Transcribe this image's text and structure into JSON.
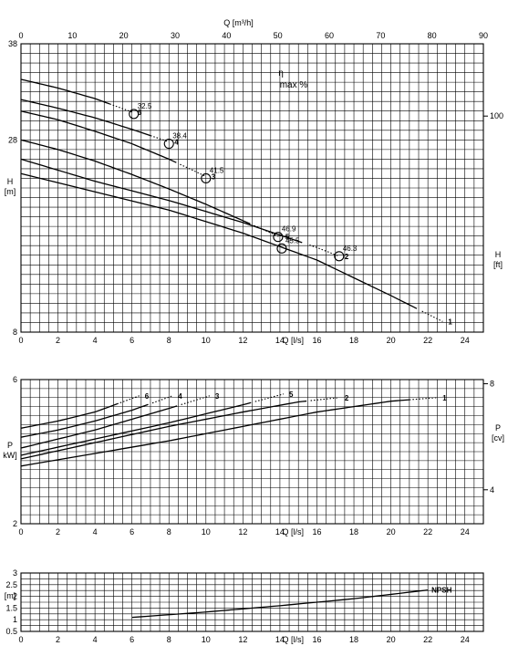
{
  "chart_data": [
    {
      "type": "line",
      "title": "",
      "xlabel": "Q [l/s]",
      "ylabel": "H\n[m]",
      "ylim": [
        8,
        38
      ],
      "xlim": [
        0,
        25
      ],
      "xticks": [
        0,
        2,
        4,
        6,
        8,
        10,
        12,
        14,
        16,
        18,
        20,
        22,
        24
      ],
      "yticks": [
        8,
        28,
        38
      ],
      "top_axis": {
        "label": "Q [m³/h]",
        "ticks": [
          0,
          10,
          20,
          30,
          40,
          50,
          60,
          70,
          80,
          90
        ]
      },
      "right_axis": {
        "label": "H\n[ft]",
        "ticks": [
          100
        ]
      },
      "annotation": {
        "line1": "η",
        "line2": "max %"
      },
      "series": [
        {
          "name": "1",
          "x": [
            0,
            4,
            8,
            12,
            16,
            20,
            22.8
          ],
          "y": [
            24.5,
            22.6,
            20.7,
            18.3,
            15.5,
            11.8,
            9.1
          ],
          "dotted_from": 21.5
        },
        {
          "name": "2",
          "x": [
            0,
            4,
            8,
            12,
            16,
            17.2
          ],
          "y": [
            26.0,
            23.7,
            21.7,
            19.4,
            16.8,
            15.9
          ],
          "dotted_from": 15.5
        },
        {
          "name": "3",
          "x": [
            0,
            2,
            4,
            6,
            8,
            10
          ],
          "y": [
            31.0,
            30.1,
            28.9,
            27.6,
            26.0,
            24.2
          ],
          "dotted_from": 8.5
        },
        {
          "name": "4",
          "x": [
            0,
            2,
            4,
            6,
            8
          ],
          "y": [
            32.2,
            31.3,
            30.3,
            29.1,
            27.8
          ],
          "dotted_from": 7.0
        },
        {
          "name": "5",
          "x": [
            0,
            2,
            4,
            6,
            8,
            10,
            12,
            14
          ],
          "y": [
            28.0,
            27.0,
            25.8,
            24.4,
            22.9,
            21.3,
            19.6,
            17.9
          ],
          "dotted_from": 12.5
        },
        {
          "name": "6",
          "x": [
            0,
            2,
            4,
            6
          ],
          "y": [
            34.3,
            33.4,
            32.3,
            30.9
          ],
          "dotted_from": 4.8
        }
      ],
      "efficiency_points": [
        {
          "series": "6",
          "x": 6.1,
          "y": 30.7,
          "label": "32.5"
        },
        {
          "series": "4",
          "x": 8.0,
          "y": 27.6,
          "label": "38.4"
        },
        {
          "series": "3",
          "x": 10.0,
          "y": 24.0,
          "label": "41.5"
        },
        {
          "series": "5",
          "x": 13.9,
          "y": 17.9,
          "label": "46.9"
        },
        {
          "series": "1",
          "x": 14.1,
          "y": 16.7,
          "label": "45.5"
        },
        {
          "series": "2",
          "x": 17.2,
          "y": 15.9,
          "label": "46.3"
        }
      ]
    },
    {
      "type": "line",
      "title": "",
      "xlabel": "Q [l/s]",
      "ylabel": "P\nkW]",
      "ylim": [
        2,
        6
      ],
      "xlim": [
        0,
        25
      ],
      "xticks": [
        0,
        2,
        4,
        6,
        8,
        10,
        12,
        14,
        16,
        18,
        20,
        22,
        24
      ],
      "yticks": [
        2,
        6
      ],
      "right_axis": {
        "label": "P\n[cv]",
        "ticks": [
          4,
          8
        ]
      },
      "series": [
        {
          "name": "1",
          "x": [
            0,
            4,
            8,
            12,
            16,
            20,
            22.5
          ],
          "y": [
            3.6,
            3.95,
            4.3,
            4.7,
            5.1,
            5.4,
            5.5
          ],
          "dotted_from": 21.0
        },
        {
          "name": "2",
          "x": [
            0,
            4,
            8,
            12,
            15,
            17.2
          ],
          "y": [
            3.8,
            4.25,
            4.7,
            5.1,
            5.38,
            5.5
          ],
          "dotted_from": 15.5
        },
        {
          "name": "3",
          "x": [
            0,
            2,
            4,
            6,
            8,
            10.2
          ],
          "y": [
            4.1,
            4.35,
            4.6,
            4.9,
            5.2,
            5.55
          ],
          "dotted_from": 8.5
        },
        {
          "name": "4",
          "x": [
            0,
            2,
            4,
            6,
            8.2
          ],
          "y": [
            4.4,
            4.6,
            4.85,
            5.15,
            5.55
          ],
          "dotted_from": 7.0
        },
        {
          "name": "5",
          "x": [
            0,
            4,
            8,
            12,
            14.2
          ],
          "y": [
            3.9,
            4.35,
            4.8,
            5.3,
            5.6
          ],
          "dotted_from": 12.5
        },
        {
          "name": "6",
          "x": [
            0,
            2,
            4,
            6.4
          ],
          "y": [
            4.65,
            4.85,
            5.1,
            5.55
          ],
          "dotted_from": 5.2
        }
      ]
    },
    {
      "type": "line",
      "title": "",
      "xlabel": "Q [l/s]",
      "ylabel": "[m]",
      "ylim": [
        0.5,
        3
      ],
      "xlim": [
        0,
        25
      ],
      "xticks": [
        0,
        2,
        4,
        6,
        8,
        10,
        12,
        14,
        16,
        18,
        20,
        22,
        24
      ],
      "yticks": [
        0.5,
        1,
        1.5,
        2,
        2.5,
        3
      ],
      "series": [
        {
          "name": "NPSH",
          "x": [
            6,
            10,
            14,
            18,
            22
          ],
          "y": [
            1.1,
            1.33,
            1.6,
            1.9,
            2.27
          ]
        }
      ]
    }
  ]
}
